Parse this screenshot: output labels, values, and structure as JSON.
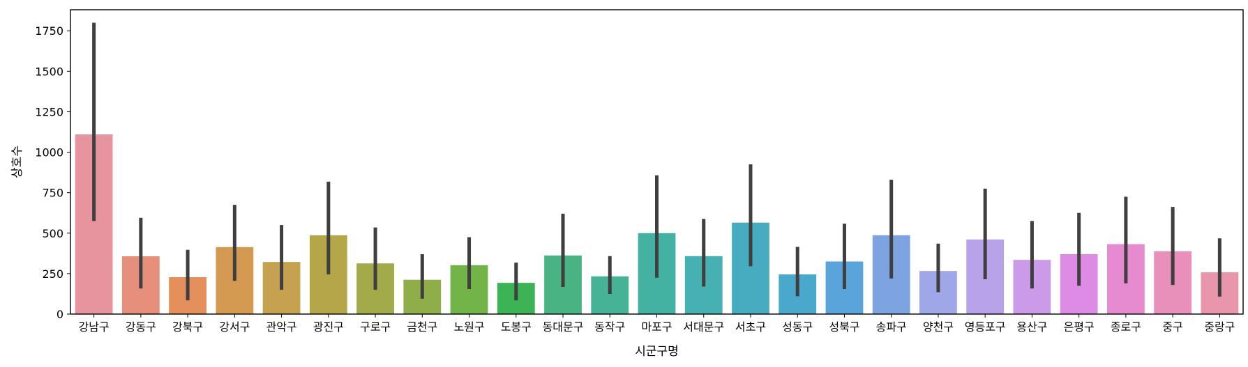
{
  "chart_data": {
    "type": "bar",
    "title": "",
    "xlabel": "시군구명",
    "ylabel": "상호수",
    "ylim": [
      0,
      1880
    ],
    "yticks": [
      0,
      250,
      500,
      750,
      1000,
      1250,
      1500,
      1750
    ],
    "grid": false,
    "error_bars": true,
    "categories": [
      "강남구",
      "강동구",
      "강북구",
      "강서구",
      "관악구",
      "광진구",
      "구로구",
      "금천구",
      "노원구",
      "도봉구",
      "동대문구",
      "동작구",
      "마포구",
      "서대문구",
      "서초구",
      "성동구",
      "성북구",
      "송파구",
      "양천구",
      "영등포구",
      "용산구",
      "은평구",
      "종로구",
      "중구",
      "중랑구"
    ],
    "values": [
      1110,
      357,
      228,
      414,
      322,
      487,
      313,
      212,
      302,
      193,
      362,
      233,
      500,
      358,
      565,
      245,
      325,
      487,
      266,
      461,
      335,
      370,
      432,
      388,
      258
    ],
    "err_low": [
      575,
      158,
      85,
      205,
      150,
      245,
      150,
      95,
      155,
      85,
      168,
      125,
      225,
      170,
      295,
      110,
      155,
      220,
      135,
      215,
      158,
      175,
      190,
      180,
      108
    ],
    "err_high": [
      1800,
      595,
      397,
      675,
      550,
      818,
      535,
      370,
      475,
      318,
      620,
      358,
      857,
      588,
      925,
      415,
      558,
      830,
      435,
      775,
      575,
      625,
      725,
      662,
      468
    ],
    "colors": [
      "#e8949e",
      "#e6907c",
      "#e58f5c",
      "#d59a52",
      "#c6a150",
      "#b4a649",
      "#a3aa4a",
      "#8fae49",
      "#72b447",
      "#3cb456",
      "#49b383",
      "#46b396",
      "#44b2a3",
      "#46b0b3",
      "#47acc0",
      "#4aa8cc",
      "#58a4db",
      "#7ea3e1",
      "#a0a7e8",
      "#b8a2e9",
      "#cb9ae8",
      "#dd8be5",
      "#e68bcf",
      "#e88fba",
      "#e995ac"
    ]
  }
}
